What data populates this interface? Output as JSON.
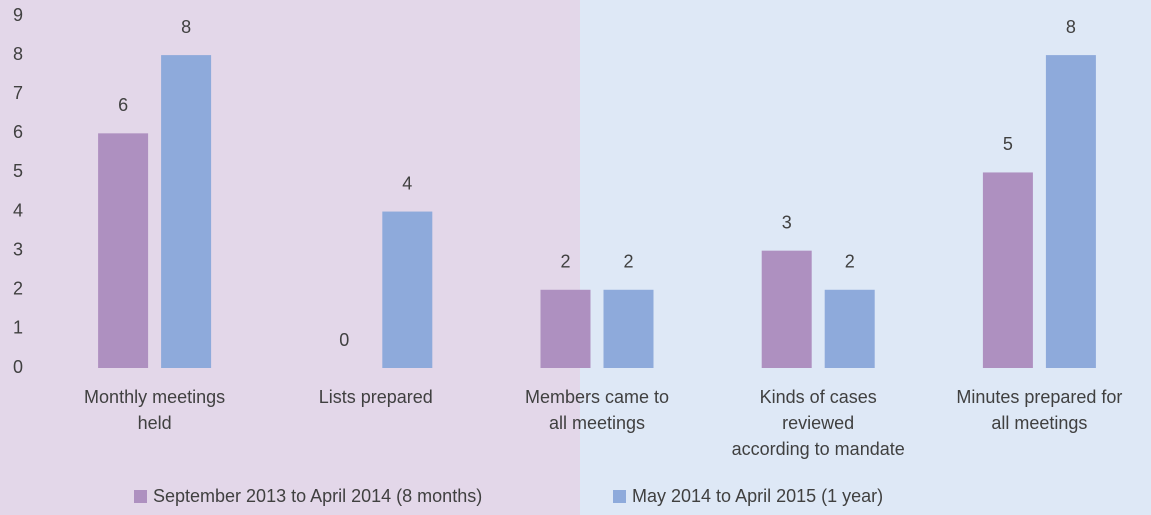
{
  "chart_data": {
    "type": "bar",
    "categories": [
      "Monthly meetings\nheld",
      "Lists prepared",
      "Members came to\nall meetings",
      "Kinds of cases\nreviewed\naccording to mandate",
      "Minutes prepared for\nall meetings"
    ],
    "series": [
      {
        "name": "September 2013 to April 2014 (8 months)",
        "color": "#ae90c0",
        "values": [
          6,
          0,
          2,
          3,
          5
        ]
      },
      {
        "name": "May 2014 to April 2015 (1 year)",
        "color": "#8eaadb",
        "values": [
          8,
          4,
          2,
          2,
          8
        ]
      }
    ],
    "ylim": [
      0,
      9
    ],
    "yticks": [
      0,
      1,
      2,
      3,
      4,
      5,
      6,
      7,
      8,
      9
    ],
    "grid": false,
    "legend": "bottom"
  }
}
